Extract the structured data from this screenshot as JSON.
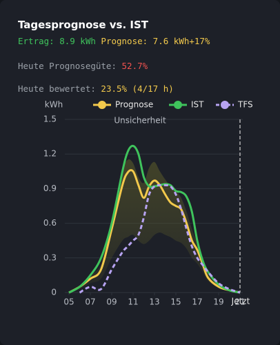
{
  "header": {
    "title": "Tagesprognose vs. IST",
    "ertrag": "Ertrag: 8.9 kWh",
    "prognose": "Prognose: 7.6 kWh",
    "delta": "+17%",
    "guete_label": "Heute Prognosegüte:",
    "guete_value": "52.7%",
    "bewertet_label": "Heute bewertet:",
    "bewertet_value": "23.5% (4/17 h)"
  },
  "chart_data": {
    "type": "line",
    "y_label": "kWh",
    "x": [
      5,
      6,
      7,
      8,
      9,
      10,
      10.5,
      11,
      11.5,
      12,
      12.5,
      13,
      13.5,
      14,
      14.5,
      15,
      15.5,
      16,
      16.5,
      17,
      17.5,
      18,
      19,
      20,
      21
    ],
    "series": [
      {
        "name": "Prognose",
        "color": "#f2c94c",
        "dashed": false,
        "values": [
          0,
          0.05,
          0.12,
          0.2,
          0.55,
          0.93,
          1.04,
          1.05,
          0.93,
          0.82,
          0.92,
          0.97,
          0.93,
          0.85,
          0.78,
          0.75,
          0.72,
          0.6,
          0.45,
          0.37,
          0.25,
          0.13,
          0.05,
          0.02,
          0
        ]
      },
      {
        "name": "IST",
        "color": "#3fc35c",
        "dashed": false,
        "values": [
          0,
          0.05,
          0.15,
          0.3,
          0.6,
          1.05,
          1.22,
          1.27,
          1.2,
          1.0,
          0.92,
          0.92,
          0.93,
          0.94,
          0.93,
          0.88,
          0.87,
          0.83,
          0.7,
          0.45,
          0.28,
          0.18,
          0.07,
          0.02,
          0
        ]
      },
      {
        "name": "TFS",
        "color": "#b7a3f2",
        "dashed": true,
        "values": [
          null,
          0,
          0.05,
          0.03,
          0.2,
          0.35,
          0.4,
          0.45,
          0.5,
          0.65,
          0.85,
          0.92,
          0.93,
          0.93,
          0.92,
          0.85,
          0.72,
          0.55,
          0.4,
          0.3,
          0.24,
          0.18,
          0.08,
          0.03,
          0
        ]
      }
    ],
    "band": {
      "label": "Unsicherheit",
      "color": "#5a5a2a",
      "upper": [
        0,
        0.06,
        0.15,
        0.25,
        0.65,
        1.05,
        1.15,
        1.12,
        1.0,
        0.95,
        1.08,
        1.13,
        1.05,
        0.98,
        0.92,
        0.88,
        0.82,
        0.7,
        0.55,
        0.43,
        0.3,
        0.17,
        0.07,
        0.03,
        0
      ],
      "lower": [
        0,
        0.03,
        0.08,
        0.12,
        0.3,
        0.45,
        0.48,
        0.5,
        0.45,
        0.42,
        0.45,
        0.5,
        0.52,
        0.5,
        0.48,
        0.45,
        0.43,
        0.38,
        0.3,
        0.25,
        0.18,
        0.1,
        0.04,
        0.01,
        0
      ]
    },
    "now": {
      "x": 21,
      "label": "Jetzt"
    },
    "xlim": [
      5,
      21
    ],
    "xticks": [
      {
        "value": 5,
        "label": "05"
      },
      {
        "value": 7,
        "label": "07"
      },
      {
        "value": 9,
        "label": "09"
      },
      11,
      13,
      15,
      17,
      19,
      21
    ],
    "ylim": [
      0,
      1.5
    ],
    "yticks": [
      0,
      0.3,
      0.6,
      0.9,
      1.2,
      1.5
    ],
    "grid": true
  }
}
